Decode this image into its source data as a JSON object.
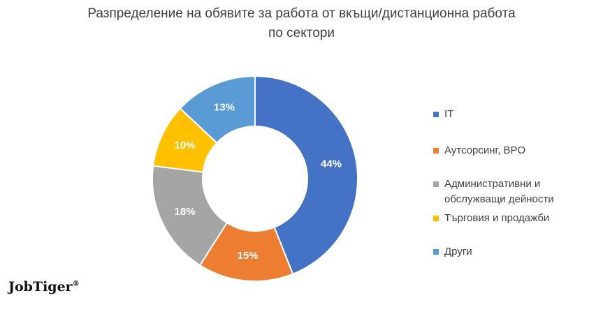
{
  "chart_data": {
    "type": "pie",
    "variant": "donut",
    "title": "Разпределение на обявите за работа от вкъщи/дистанционна работа по сектори",
    "title_lines": [
      "Разпределение на обявите за работа от вкъщи/дистанционна работа",
      "по сектори"
    ],
    "legend_position": "right",
    "slices": [
      {
        "label": "IT",
        "value": 44,
        "display": "44%",
        "color": "#4472C4"
      },
      {
        "label": "Аутсорсинг, BPO",
        "value": 15,
        "display": "15%",
        "color": "#ED7D31"
      },
      {
        "label": "Административни и обслужващи дейности",
        "value": 18,
        "display": "18%",
        "color": "#A5A5A5"
      },
      {
        "label": "Търговия и продажби",
        "value": 10,
        "display": "10%",
        "color": "#FFC000"
      },
      {
        "label": "Други",
        "value": 13,
        "display": "13%",
        "color": "#5B9BD5"
      }
    ]
  },
  "branding": {
    "logo_text": "JobTiger",
    "logo_mark": "®"
  }
}
